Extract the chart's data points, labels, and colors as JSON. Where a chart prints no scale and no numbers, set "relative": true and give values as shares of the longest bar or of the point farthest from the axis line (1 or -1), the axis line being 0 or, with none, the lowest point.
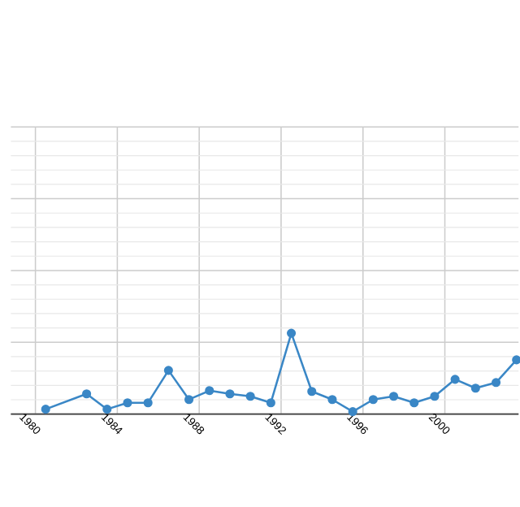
{
  "chart_data": {
    "type": "line",
    "relative": true,
    "x": [
      1980.5,
      1982.5,
      1983.5,
      1984.5,
      1985.5,
      1986.5,
      1987.5,
      1988.5,
      1989.5,
      1990.5,
      1991.5,
      1992.5,
      1993.5,
      1994.5,
      1995.5,
      1996.5,
      1997.5,
      1998.5,
      1999.5,
      2000.5,
      2001.5,
      2002.5,
      2003.5
    ],
    "values": [
      0.06,
      0.25,
      0.06,
      0.14,
      0.14,
      0.54,
      0.18,
      0.29,
      0.25,
      0.22,
      0.14,
      1.0,
      0.28,
      0.18,
      0.03,
      0.18,
      0.22,
      0.14,
      0.22,
      0.43,
      0.32,
      0.39,
      0.67
    ],
    "color": "#3a87c6",
    "marker": "circle",
    "line_style": "solid",
    "xlim": [
      1978.8,
      2003.6
    ],
    "xticks": [
      1980,
      1984,
      1988,
      1992,
      1996,
      2000
    ],
    "grid": true,
    "tick_labels": "x"
  }
}
